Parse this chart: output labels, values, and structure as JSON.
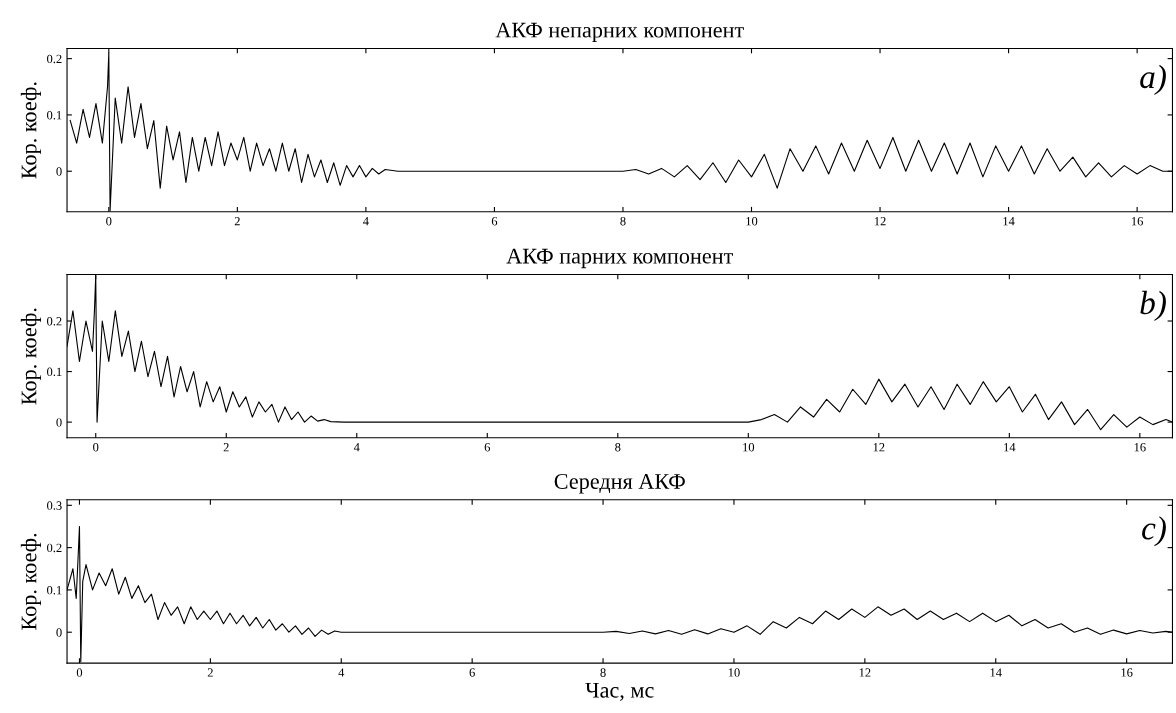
{
  "chart_data": [
    {
      "type": "line",
      "title": "АКФ непарних компонент",
      "ylabel": "Кор. коеф.",
      "annotations": [
        "a)"
      ],
      "xlim": [
        -0.65,
        16.55
      ],
      "ylim": [
        -0.072,
        0.218
      ],
      "xticks": [
        0,
        2,
        4,
        6,
        8,
        10,
        12,
        14,
        16
      ],
      "yticks": [
        0,
        0.1,
        0.2
      ],
      "series": [
        {
          "color": "#000000",
          "x": [
            -0.6,
            -0.5,
            -0.4,
            -0.3,
            -0.2,
            -0.1,
            -0.02,
            0,
            0.02,
            0.1,
            0.2,
            0.3,
            0.4,
            0.5,
            0.6,
            0.7,
            0.8,
            0.9,
            1.0,
            1.1,
            1.2,
            1.3,
            1.4,
            1.5,
            1.6,
            1.7,
            1.8,
            1.9,
            2.0,
            2.1,
            2.2,
            2.3,
            2.4,
            2.5,
            2.6,
            2.7,
            2.8,
            2.9,
            3.0,
            3.1,
            3.2,
            3.3,
            3.4,
            3.5,
            3.6,
            3.7,
            3.8,
            3.9,
            4.0,
            4.1,
            4.2,
            4.3,
            4.5,
            8.0,
            8.2,
            8.4,
            8.6,
            8.8,
            9.0,
            9.2,
            9.4,
            9.6,
            9.8,
            10.0,
            10.2,
            10.4,
            10.6,
            10.8,
            11.0,
            11.2,
            11.4,
            11.6,
            11.8,
            12.0,
            12.2,
            12.4,
            12.6,
            12.8,
            13.0,
            13.2,
            13.4,
            13.6,
            13.8,
            14.0,
            14.2,
            14.4,
            14.6,
            14.8,
            15.0,
            15.2,
            15.4,
            15.6,
            15.8,
            16.0,
            16.2,
            16.4,
            16.55
          ],
          "values": [
            0.09,
            0.05,
            0.11,
            0.06,
            0.12,
            0.05,
            0.15,
            0.21,
            -0.07,
            0.13,
            0.05,
            0.15,
            0.06,
            0.12,
            0.04,
            0.09,
            -0.03,
            0.08,
            0.02,
            0.07,
            -0.02,
            0.06,
            0.0,
            0.06,
            0.01,
            0.07,
            0.01,
            0.05,
            0.02,
            0.06,
            0.0,
            0.05,
            0.01,
            0.04,
            0.0,
            0.05,
            0.0,
            0.04,
            -0.02,
            0.03,
            -0.01,
            0.02,
            -0.02,
            0.015,
            -0.025,
            0.01,
            -0.01,
            0.01,
            -0.01,
            0.005,
            -0.005,
            0.003,
            0,
            0,
            0.003,
            -0.005,
            0.005,
            -0.01,
            0.01,
            -0.015,
            0.015,
            -0.02,
            0.02,
            -0.01,
            0.03,
            -0.03,
            0.04,
            0.0,
            0.045,
            -0.005,
            0.05,
            0.0,
            0.055,
            0.005,
            0.06,
            0.0,
            0.055,
            0.0,
            0.05,
            -0.005,
            0.05,
            -0.01,
            0.045,
            0.0,
            0.045,
            -0.005,
            0.04,
            0.0,
            0.025,
            -0.01,
            0.015,
            -0.01,
            0.01,
            -0.005,
            0.01,
            0.0,
            0.0
          ]
        }
      ]
    },
    {
      "type": "line",
      "title": "АКФ парних компонент",
      "ylabel": "Кор. коеф.",
      "annotations": [
        "b)"
      ],
      "xlim": [
        -0.44,
        16.5
      ],
      "ylim": [
        -0.031,
        0.292
      ],
      "xticks": [
        0,
        2,
        4,
        6,
        8,
        10,
        12,
        14,
        16
      ],
      "yticks": [
        0,
        0.1,
        0.2
      ],
      "series": [
        {
          "color": "#000000",
          "x": [
            -0.44,
            -0.35,
            -0.25,
            -0.15,
            -0.05,
            -0.02,
            0,
            0.02,
            0.1,
            0.2,
            0.3,
            0.4,
            0.5,
            0.6,
            0.7,
            0.8,
            0.9,
            1.0,
            1.1,
            1.2,
            1.3,
            1.4,
            1.5,
            1.6,
            1.7,
            1.8,
            1.9,
            2.0,
            2.1,
            2.2,
            2.3,
            2.4,
            2.5,
            2.6,
            2.7,
            2.8,
            2.9,
            3.0,
            3.1,
            3.2,
            3.3,
            3.4,
            3.5,
            3.6,
            3.8,
            10.0,
            10.2,
            10.4,
            10.6,
            10.8,
            11.0,
            11.2,
            11.4,
            11.6,
            11.8,
            12.0,
            12.2,
            12.4,
            12.6,
            12.8,
            13.0,
            13.2,
            13.4,
            13.6,
            13.8,
            14.0,
            14.2,
            14.4,
            14.6,
            14.8,
            15.0,
            15.2,
            15.4,
            15.6,
            15.8,
            16.0,
            16.2,
            16.4,
            16.5
          ],
          "values": [
            0.15,
            0.22,
            0.12,
            0.2,
            0.14,
            0.22,
            0.29,
            0.0,
            0.2,
            0.12,
            0.22,
            0.13,
            0.18,
            0.1,
            0.16,
            0.09,
            0.14,
            0.07,
            0.13,
            0.05,
            0.11,
            0.06,
            0.1,
            0.03,
            0.08,
            0.04,
            0.07,
            0.02,
            0.06,
            0.03,
            0.05,
            0.01,
            0.04,
            0.02,
            0.035,
            0.0,
            0.03,
            0.005,
            0.02,
            0.0,
            0.012,
            0.002,
            0.005,
            0.001,
            0,
            0,
            0.005,
            0.015,
            0.0,
            0.03,
            0.01,
            0.045,
            0.02,
            0.065,
            0.035,
            0.085,
            0.04,
            0.075,
            0.03,
            0.07,
            0.025,
            0.075,
            0.035,
            0.08,
            0.04,
            0.07,
            0.02,
            0.055,
            0.005,
            0.04,
            -0.005,
            0.025,
            -0.015,
            0.015,
            -0.01,
            0.01,
            -0.005,
            0.005,
            0.0
          ]
        }
      ]
    },
    {
      "type": "line",
      "title": "Середня АКФ",
      "ylabel": "Кор. коеф.",
      "xlabel": "Час, мс",
      "annotations": [
        "c)"
      ],
      "xlim": [
        -0.19,
        16.7
      ],
      "ylim": [
        -0.073,
        0.313
      ],
      "xticks": [
        0,
        2,
        4,
        6,
        8,
        10,
        12,
        14,
        16
      ],
      "yticks": [
        0,
        0.1,
        0.2,
        0.3
      ],
      "series": [
        {
          "color": "#000000",
          "x": [
            -0.19,
            -0.1,
            -0.05,
            -0.02,
            0,
            0.02,
            0.05,
            0.1,
            0.2,
            0.3,
            0.4,
            0.5,
            0.6,
            0.7,
            0.8,
            0.9,
            1.0,
            1.1,
            1.2,
            1.3,
            1.4,
            1.5,
            1.6,
            1.7,
            1.8,
            1.9,
            2.0,
            2.1,
            2.2,
            2.3,
            2.4,
            2.5,
            2.6,
            2.7,
            2.8,
            2.9,
            3.0,
            3.1,
            3.2,
            3.3,
            3.4,
            3.5,
            3.6,
            3.7,
            3.8,
            3.9,
            4.0,
            4.5,
            8.0,
            8.2,
            8.4,
            8.6,
            8.8,
            9.0,
            9.2,
            9.4,
            9.6,
            9.8,
            10.0,
            10.2,
            10.4,
            10.6,
            10.8,
            11.0,
            11.2,
            11.4,
            11.6,
            11.8,
            12.0,
            12.2,
            12.4,
            12.6,
            12.8,
            13.0,
            13.2,
            13.4,
            13.6,
            13.8,
            14.0,
            14.2,
            14.4,
            14.6,
            14.8,
            15.0,
            15.2,
            15.4,
            15.6,
            15.8,
            16.0,
            16.2,
            16.4,
            16.6,
            16.7
          ],
          "values": [
            0.1,
            0.15,
            0.08,
            0.18,
            0.25,
            -0.07,
            0.12,
            0.16,
            0.1,
            0.14,
            0.11,
            0.15,
            0.09,
            0.13,
            0.08,
            0.11,
            0.07,
            0.09,
            0.03,
            0.07,
            0.04,
            0.06,
            0.02,
            0.06,
            0.03,
            0.05,
            0.03,
            0.05,
            0.02,
            0.045,
            0.02,
            0.04,
            0.015,
            0.035,
            0.01,
            0.03,
            0.005,
            0.02,
            0.0,
            0.015,
            -0.005,
            0.01,
            -0.01,
            0.005,
            -0.005,
            0.003,
            0.0,
            0,
            0,
            0.002,
            -0.003,
            0.003,
            -0.004,
            0.004,
            -0.005,
            0.006,
            -0.004,
            0.008,
            0.0,
            0.015,
            -0.005,
            0.025,
            0.01,
            0.035,
            0.02,
            0.05,
            0.03,
            0.055,
            0.035,
            0.06,
            0.04,
            0.055,
            0.03,
            0.05,
            0.03,
            0.045,
            0.025,
            0.045,
            0.025,
            0.04,
            0.015,
            0.03,
            0.01,
            0.02,
            0.0,
            0.01,
            -0.005,
            0.005,
            -0.004,
            0.004,
            -0.002,
            0.002,
            0.0
          ]
        }
      ]
    }
  ]
}
